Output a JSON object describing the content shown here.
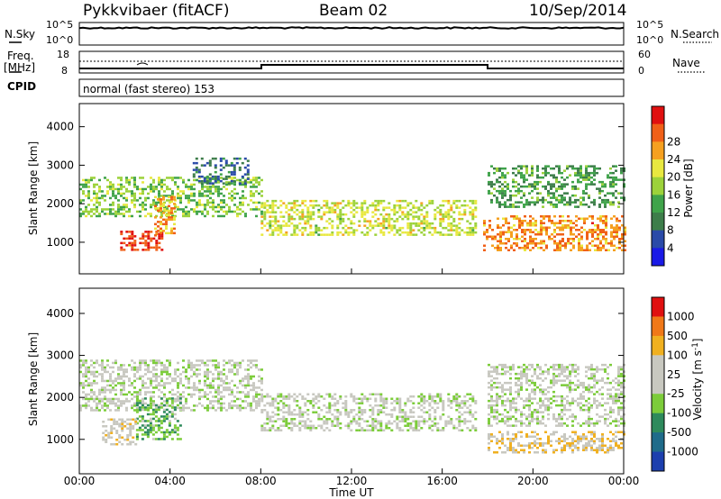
{
  "header": {
    "radar": "Pykkvibaer (fitACF)",
    "beam": "Beam 02",
    "date": "10/Sep/2014"
  },
  "sky_panel": {
    "left_label": "N.Sky",
    "right_label": "N.Search",
    "left_ticks": [
      "10^5",
      "10^0"
    ],
    "right_ticks": [
      "10^5",
      "10^0"
    ]
  },
  "freq_panel": {
    "left_label_1": "Freq.",
    "left_label_2": "[MHz]",
    "right_label": "Nave",
    "left_ticks": [
      "18",
      "8"
    ],
    "right_ticks": [
      "60",
      "0"
    ]
  },
  "cpid": {
    "label": "CPID",
    "value": "normal (fast stereo) 153"
  },
  "time_axis": {
    "xlabel": "Time UT",
    "ticks": [
      "00:00",
      "04:00",
      "08:00",
      "12:00",
      "16:00",
      "20:00",
      "00:00"
    ]
  },
  "colors": {
    "scale_power": [
      "#1a1ae6",
      "#2a4aa8",
      "#3d7d4a",
      "#3fa34a",
      "#9cd23a",
      "#e8e840",
      "#f5a020",
      "#f06018",
      "#e01010"
    ],
    "scale_velocity": [
      "#1c3fae",
      "#1f6b8a",
      "#2e8a5c",
      "#7ccc3a",
      "#c8c8c0",
      "#c8c8c0",
      "#f0b020",
      "#f07818",
      "#e01010"
    ],
    "gray_scatter": "#c8c8c0"
  },
  "chart_data": [
    {
      "type": "heatmap",
      "title": "",
      "xlabel": "Time UT",
      "ylabel": "Slant Range [km]",
      "xlim_hours_ut": [
        0,
        24
      ],
      "ylim_km": [
        180,
        4600
      ],
      "y_ticks": [
        "1000",
        "2000",
        "3000",
        "4000"
      ],
      "colorbar": {
        "label": "Power [dB]",
        "ticks": [
          "4",
          "8",
          "12",
          "16",
          "20",
          "24",
          "28"
        ],
        "range": [
          0,
          30
        ]
      },
      "bands": [
        {
          "t0": 0.0,
          "t1": 8.0,
          "r0": 1700,
          "r1": 2700,
          "level_db": 14
        },
        {
          "t0": 1.8,
          "t1": 3.6,
          "r0": 800,
          "r1": 1300,
          "level_db": 27
        },
        {
          "t0": 3.3,
          "t1": 4.2,
          "r0": 1200,
          "r1": 2200,
          "level_db": 22
        },
        {
          "t0": 8.0,
          "t1": 17.5,
          "r0": 1200,
          "r1": 2100,
          "level_db": 17
        },
        {
          "t0": 17.8,
          "t1": 24.0,
          "r0": 800,
          "r1": 1700,
          "level_db": 23
        },
        {
          "t0": 18.0,
          "t1": 24.0,
          "r0": 1900,
          "r1": 3000,
          "level_db": 11
        },
        {
          "t0": 5.0,
          "t1": 7.5,
          "r0": 2500,
          "r1": 3200,
          "level_db": 7
        }
      ]
    },
    {
      "type": "heatmap",
      "title": "",
      "xlabel": "Time UT",
      "ylabel": "Slant Range [km]",
      "xlim_hours_ut": [
        0,
        24
      ],
      "ylim_km": [
        180,
        4600
      ],
      "y_ticks": [
        "1000",
        "2000",
        "3000",
        "4000"
      ],
      "colorbar": {
        "label": "Velocity [m s",
        "label_superscript": "-1",
        "label_close": "]",
        "ticks": [
          "1000",
          "500",
          "100",
          "25",
          "-25",
          "-100",
          "-500",
          "-1000"
        ],
        "range": [
          -1000,
          1000
        ]
      },
      "bands": [
        {
          "t0": 0.0,
          "t1": 8.0,
          "r0": 1700,
          "r1": 2900,
          "velocity": 0
        },
        {
          "t0": 8.0,
          "t1": 17.5,
          "r0": 1200,
          "r1": 2100,
          "velocity": 0
        },
        {
          "t0": 2.5,
          "t1": 4.5,
          "r0": 1000,
          "r1": 2000,
          "velocity": -300
        },
        {
          "t0": 1.0,
          "t1": 2.5,
          "r0": 900,
          "r1": 1500,
          "velocity": 200
        },
        {
          "t0": 18.0,
          "t1": 24.0,
          "r0": 700,
          "r1": 1200,
          "velocity": 300
        },
        {
          "t0": 18.0,
          "t1": 24.0,
          "r0": 1300,
          "r1": 2800,
          "velocity": 0
        }
      ]
    }
  ]
}
